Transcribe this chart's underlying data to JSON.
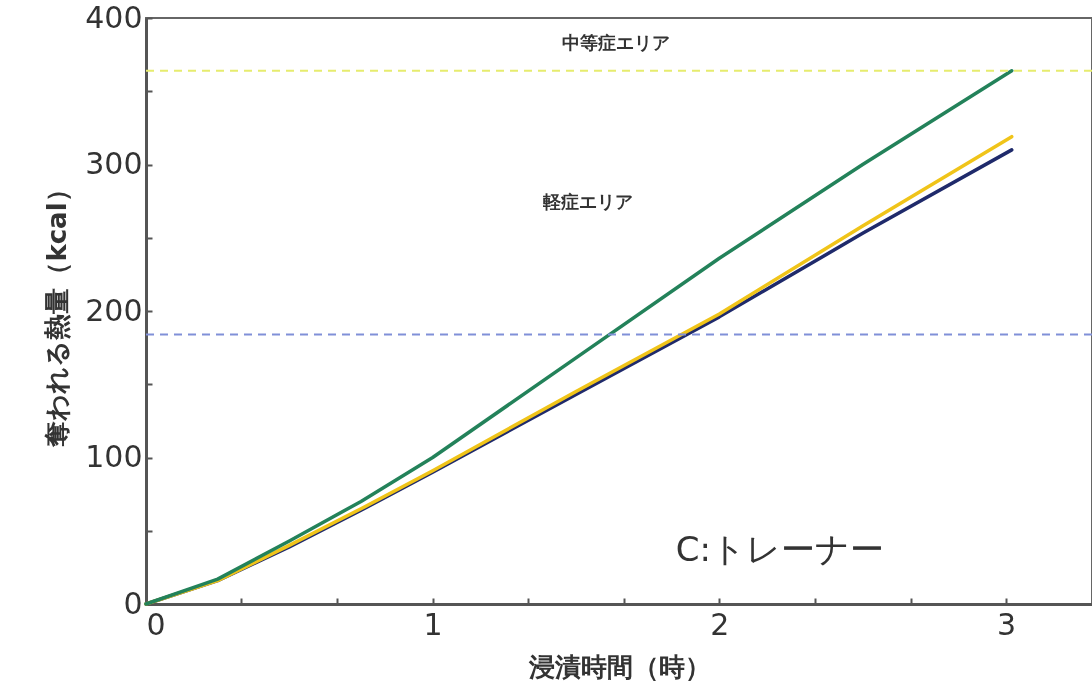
{
  "chart_data": {
    "type": "line",
    "xlabel": "浸漬時間（時）",
    "ylabel": "奪われる熱量（kcal）",
    "xlim": [
      0,
      3.3
    ],
    "xticks": [
      0,
      {
        "value": 0.333,
        "label": null
      },
      {
        "value": 0.667,
        "label": null
      },
      1,
      {
        "value": 1.333,
        "label": null
      },
      {
        "value": 1.667,
        "label": null
      },
      2,
      {
        "value": 2.333,
        "label": null
      },
      {
        "value": 2.667,
        "label": null
      },
      3
    ],
    "ylim": [
      0,
      400
    ],
    "yticks": [
      0,
      {
        "value": 50,
        "label": null
      },
      100,
      {
        "value": 150,
        "label": null
      },
      200,
      {
        "value": 250,
        "label": null
      },
      300,
      {
        "value": 350,
        "label": null
      },
      400
    ],
    "grid": false,
    "marker": "none",
    "line_style": "solid",
    "x": [
      0,
      0.25,
      0.5,
      0.75,
      1,
      1.5,
      2,
      2.5,
      3.02
    ],
    "series": [
      {
        "color": "#1f2a6b",
        "values": [
          0,
          16,
          39,
          64,
          90,
          143,
          196,
          253,
          310
        ]
      },
      {
        "color": "#f0c419",
        "values": [
          0,
          16,
          40,
          65,
          91,
          145,
          198,
          258,
          319
        ]
      },
      {
        "color": "#23825a",
        "values": [
          0,
          17,
          43,
          70,
          100,
          168,
          236,
          300,
          364
        ]
      }
    ],
    "ref_lines": [
      {
        "axis": "y",
        "value": 364,
        "color": "#e6ec6e",
        "line_style": "dashed"
      },
      {
        "axis": "y",
        "value": 184,
        "color": "#8090d8",
        "line_style": "dashed"
      }
    ],
    "annotations": [
      "中等症エリア",
      "軽症エリア",
      "C:トレーナー"
    ]
  }
}
